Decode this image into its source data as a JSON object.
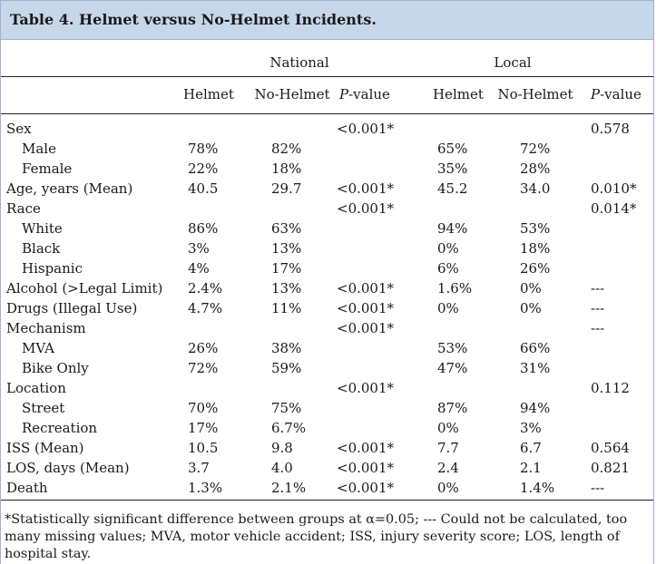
{
  "title": "Table 4. Helmet versus No-Helmet Incidents.",
  "group_headers": {
    "national": "National",
    "local": "Local"
  },
  "columns": {
    "helmet": "Helmet",
    "no_helmet": "No-Helmet",
    "p_italic": "P",
    "p_rest": "-value"
  },
  "rows": [
    {
      "label": "Sex",
      "indent": false,
      "nh": "",
      "nnh": "",
      "np": "<0.001*",
      "lh": "",
      "lnh": "",
      "lp": "0.578"
    },
    {
      "label": "Male",
      "indent": true,
      "nh": "78%",
      "nnh": "82%",
      "np": "",
      "lh": "65%",
      "lnh": "72%",
      "lp": ""
    },
    {
      "label": "Female",
      "indent": true,
      "nh": "22%",
      "nnh": "18%",
      "np": "",
      "lh": "35%",
      "lnh": "28%",
      "lp": ""
    },
    {
      "label": "Age, years (Mean)",
      "indent": false,
      "nh": "40.5",
      "nnh": "29.7",
      "np": "<0.001*",
      "lh": "45.2",
      "lnh": "34.0",
      "lp": "0.010*"
    },
    {
      "label": "Race",
      "indent": false,
      "nh": "",
      "nnh": "",
      "np": "<0.001*",
      "lh": "",
      "lnh": "",
      "lp": "0.014*"
    },
    {
      "label": "White",
      "indent": true,
      "nh": "86%",
      "nnh": "63%",
      "np": "",
      "lh": "94%",
      "lnh": "53%",
      "lp": ""
    },
    {
      "label": "Black",
      "indent": true,
      "nh": "3%",
      "nnh": "13%",
      "np": "",
      "lh": "0%",
      "lnh": "18%",
      "lp": ""
    },
    {
      "label": "Hispanic",
      "indent": true,
      "nh": "4%",
      "nnh": "17%",
      "np": "",
      "lh": "6%",
      "lnh": "26%",
      "lp": ""
    },
    {
      "label": "Alcohol (>Legal Limit)",
      "indent": false,
      "nh": "2.4%",
      "nnh": "13%",
      "np": "<0.001*",
      "lh": "1.6%",
      "lnh": "0%",
      "lp": "---"
    },
    {
      "label": "Drugs (Illegal Use)",
      "indent": false,
      "nh": "4.7%",
      "nnh": "11%",
      "np": "<0.001*",
      "lh": "0%",
      "lnh": "0%",
      "lp": "---"
    },
    {
      "label": "Mechanism",
      "indent": false,
      "nh": "",
      "nnh": "",
      "np": "<0.001*",
      "lh": "",
      "lnh": "",
      "lp": "---"
    },
    {
      "label": "MVA",
      "indent": true,
      "nh": "26%",
      "nnh": "38%",
      "np": "",
      "lh": "53%",
      "lnh": "66%",
      "lp": ""
    },
    {
      "label": "Bike Only",
      "indent": true,
      "nh": "72%",
      "nnh": "59%",
      "np": "",
      "lh": "47%",
      "lnh": "31%",
      "lp": ""
    },
    {
      "label": "Location",
      "indent": false,
      "nh": "",
      "nnh": "",
      "np": "<0.001*",
      "lh": "",
      "lnh": "",
      "lp": "0.112"
    },
    {
      "label": "Street",
      "indent": true,
      "nh": "70%",
      "nnh": "75%",
      "np": "",
      "lh": "87%",
      "lnh": "94%",
      "lp": ""
    },
    {
      "label": "Recreation",
      "indent": true,
      "nh": "17%",
      "nnh": "6.7%",
      "np": "",
      "lh": "0%",
      "lnh": "3%",
      "lp": ""
    },
    {
      "label": "ISS (Mean)",
      "indent": false,
      "nh": "10.5",
      "nnh": "9.8",
      "np": "<0.001*",
      "lh": "7.7",
      "lnh": "6.7",
      "lp": "0.564"
    },
    {
      "label": "LOS, days (Mean)",
      "indent": false,
      "nh": "3.7",
      "nnh": "4.0",
      "np": "<0.001*",
      "lh": "2.4",
      "lnh": "2.1",
      "lp": "0.821"
    },
    {
      "label": "Death",
      "indent": false,
      "nh": "1.3%",
      "nnh": "2.1%",
      "np": "<0.001*",
      "lh": "0%",
      "lnh": "1.4%",
      "lp": "---"
    }
  ],
  "footnote": "*Statistically significant difference between groups at α=0.05; --- Could not be calculated, too many missing values; MVA, motor vehicle accident; ISS, injury severity score; LOS, length of hospital stay."
}
